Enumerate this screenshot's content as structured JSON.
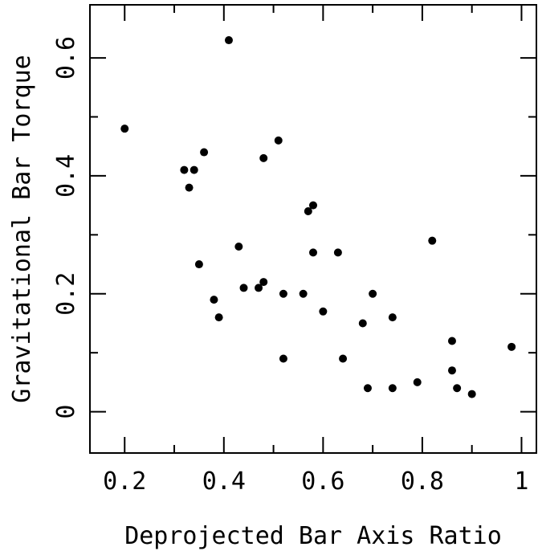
{
  "chart_data": {
    "type": "scatter",
    "title": "",
    "xlabel": "Deprojected Bar Axis Ratio",
    "ylabel": "Gravitational Bar Torque",
    "xlim": [
      0.13,
      1.03
    ],
    "ylim": [
      -0.07,
      0.69
    ],
    "grid": false,
    "x_ticks": [
      0.2,
      0.4,
      0.6,
      0.8,
      1.0
    ],
    "x_tick_labels": [
      "0.2",
      "0.4",
      "0.6",
      "0.8",
      "1"
    ],
    "x_minor_ticks": [
      0.3,
      0.5,
      0.7,
      0.9
    ],
    "y_ticks": [
      0.0,
      0.2,
      0.4,
      0.6
    ],
    "y_tick_labels": [
      "0",
      "0.2",
      "0.4",
      "0.6"
    ],
    "y_minor_ticks": [
      0.1,
      0.3,
      0.5
    ],
    "marker_color": "#000000",
    "points": [
      {
        "x": 0.2,
        "y": 0.48
      },
      {
        "x": 0.32,
        "y": 0.41
      },
      {
        "x": 0.33,
        "y": 0.38
      },
      {
        "x": 0.34,
        "y": 0.41
      },
      {
        "x": 0.35,
        "y": 0.25
      },
      {
        "x": 0.36,
        "y": 0.44
      },
      {
        "x": 0.38,
        "y": 0.19
      },
      {
        "x": 0.39,
        "y": 0.16
      },
      {
        "x": 0.41,
        "y": 0.63
      },
      {
        "x": 0.43,
        "y": 0.28
      },
      {
        "x": 0.44,
        "y": 0.21
      },
      {
        "x": 0.47,
        "y": 0.21
      },
      {
        "x": 0.48,
        "y": 0.43
      },
      {
        "x": 0.48,
        "y": 0.22
      },
      {
        "x": 0.51,
        "y": 0.46
      },
      {
        "x": 0.52,
        "y": 0.2
      },
      {
        "x": 0.52,
        "y": 0.09
      },
      {
        "x": 0.56,
        "y": 0.2
      },
      {
        "x": 0.57,
        "y": 0.34
      },
      {
        "x": 0.58,
        "y": 0.35
      },
      {
        "x": 0.58,
        "y": 0.27
      },
      {
        "x": 0.6,
        "y": 0.17
      },
      {
        "x": 0.63,
        "y": 0.27
      },
      {
        "x": 0.64,
        "y": 0.09
      },
      {
        "x": 0.68,
        "y": 0.15
      },
      {
        "x": 0.69,
        "y": 0.04
      },
      {
        "x": 0.7,
        "y": 0.2
      },
      {
        "x": 0.74,
        "y": 0.16
      },
      {
        "x": 0.74,
        "y": 0.04
      },
      {
        "x": 0.79,
        "y": 0.05
      },
      {
        "x": 0.82,
        "y": 0.29
      },
      {
        "x": 0.86,
        "y": 0.12
      },
      {
        "x": 0.86,
        "y": 0.07
      },
      {
        "x": 0.87,
        "y": 0.04
      },
      {
        "x": 0.9,
        "y": 0.03
      },
      {
        "x": 0.98,
        "y": 0.11
      }
    ]
  }
}
